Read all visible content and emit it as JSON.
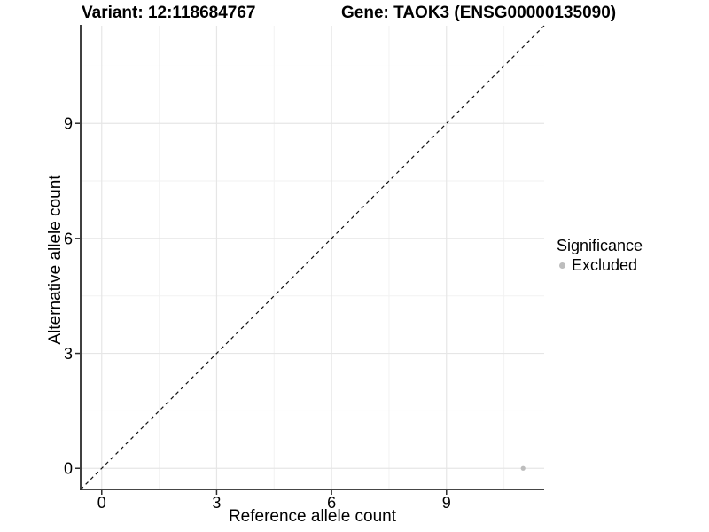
{
  "titles": {
    "variant": "Variant: 12:118684767",
    "gene": "Gene: TAOK3 (ENSG00000135090)"
  },
  "chart_data": {
    "type": "scatter",
    "title_left": "Variant: 12:118684767",
    "title_right": "Gene: TAOK3 (ENSG00000135090)",
    "xlabel": "Reference allele count",
    "ylabel": "Alternative allele count",
    "xlim": [
      -0.55,
      11.55
    ],
    "ylim": [
      -0.55,
      11.55
    ],
    "xticks": [
      0,
      3,
      6,
      9
    ],
    "yticks": [
      0,
      3,
      6,
      9
    ],
    "x_minor_ticks": [
      1.5,
      4.5,
      7.5,
      10.5
    ],
    "y_minor_ticks": [
      1.5,
      4.5,
      7.5,
      10.5
    ],
    "grid": true,
    "legend_position": "right",
    "identity_line": {
      "equation": "y = x",
      "style": "dashed",
      "color": "#111111"
    },
    "points": [
      {
        "x": 11,
        "y": 0,
        "significance": "Excluded",
        "color": "#bdbdbd"
      }
    ],
    "colors": {
      "grid_major": "#e6e6e6",
      "grid_minor": "#f2f2f2",
      "axis_line": "#2b2b2b",
      "tick_text": "#000000",
      "point": "#bdbdbd"
    }
  },
  "legend": {
    "title": "Significance",
    "items": [
      {
        "label": "Excluded",
        "color": "#bdbdbd"
      }
    ]
  }
}
